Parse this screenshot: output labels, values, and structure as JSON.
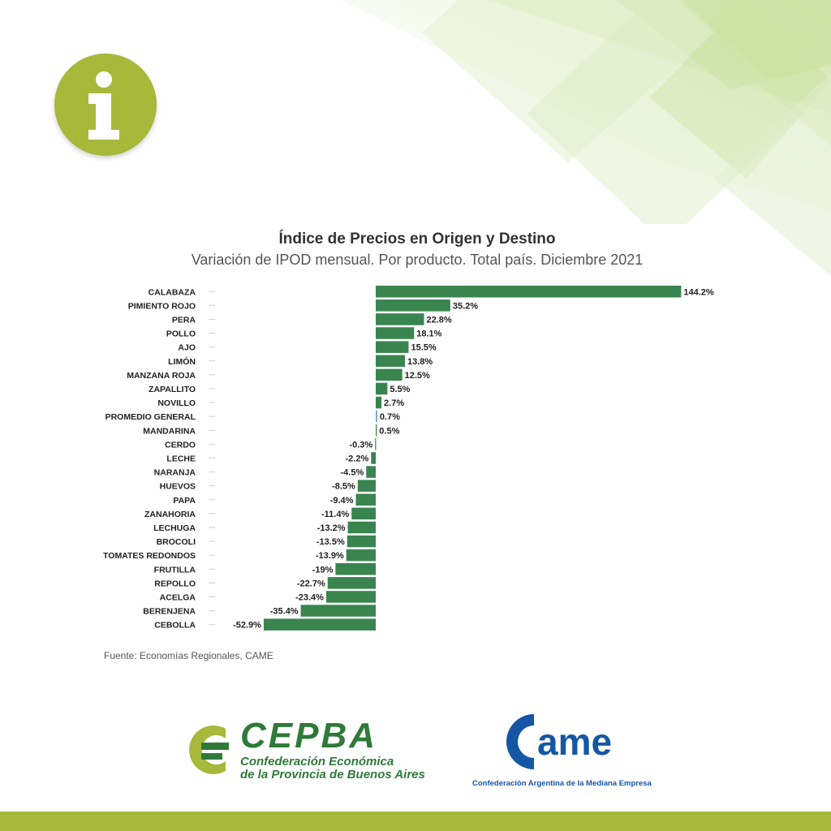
{
  "colors": {
    "bar": "#3a8450",
    "badge": "#a6b93a",
    "cepba_green": "#2f7a3a",
    "cepba_lime": "#a6b93a",
    "came_blue": "#1557a5"
  },
  "badge": {
    "icon": "info-icon"
  },
  "chart_data": {
    "type": "bar",
    "orientation": "horizontal",
    "title": "Índice de Precios en Origen y Destino",
    "subtitle": "Variación de IPOD mensual. Por producto. Total país. Diciembre 2021",
    "categories": [
      "CALABAZA",
      "PIMIENTO ROJO",
      "PERA",
      "POLLO",
      "AJO",
      "LIMÓN",
      "MANZANA ROJA",
      "ZAPALLITO",
      "NOVILLO",
      "PROMEDIO GENERAL",
      "MANDARINA",
      "CERDO",
      "LECHE",
      "NARANJA",
      "HUEVOS",
      "PAPA",
      "ZANAHORIA",
      "LECHUGA",
      "BROCOLI",
      "TOMATES REDONDOS",
      "FRUTILLA",
      "REPOLLO",
      "ACELGA",
      "BERENJENA",
      "CEBOLLA"
    ],
    "values": [
      144.2,
      35.2,
      22.8,
      18.1,
      15.5,
      13.8,
      12.5,
      5.5,
      2.7,
      0.7,
      0.5,
      -0.3,
      -2.2,
      -4.5,
      -8.5,
      -9.4,
      -11.4,
      -13.2,
      -13.5,
      -13.9,
      -19,
      -22.7,
      -23.4,
      -35.4,
      -52.9
    ],
    "value_labels": [
      "144.2%",
      "35.2%",
      "22.8%",
      "18.1%",
      "15.5%",
      "13.8%",
      "12.5%",
      "5.5%",
      "2.7%",
      "0.7%",
      "0.5%",
      "-0.3%",
      "-2.2%",
      "-4.5%",
      "-8.5%",
      "-9.4%",
      "-11.4%",
      "-13.2%",
      "-13.5%",
      "-13.9%",
      "-19%",
      "-22.7%",
      "-23.4%",
      "-35.4%",
      "-52.9%"
    ],
    "highlight_category": "PROMEDIO GENERAL",
    "xlim": [
      -52.9,
      144.2
    ],
    "source": "Fuente: Economías Regionales, CAME",
    "grid": false
  },
  "logos": {
    "cepba": {
      "name": "CEPBA",
      "line1": "Confederación Económica",
      "line2": "de la Provincia de Buenos Aires"
    },
    "came": {
      "name": "came",
      "tagline": "Confederación Argentina de la Mediana Empresa"
    }
  }
}
